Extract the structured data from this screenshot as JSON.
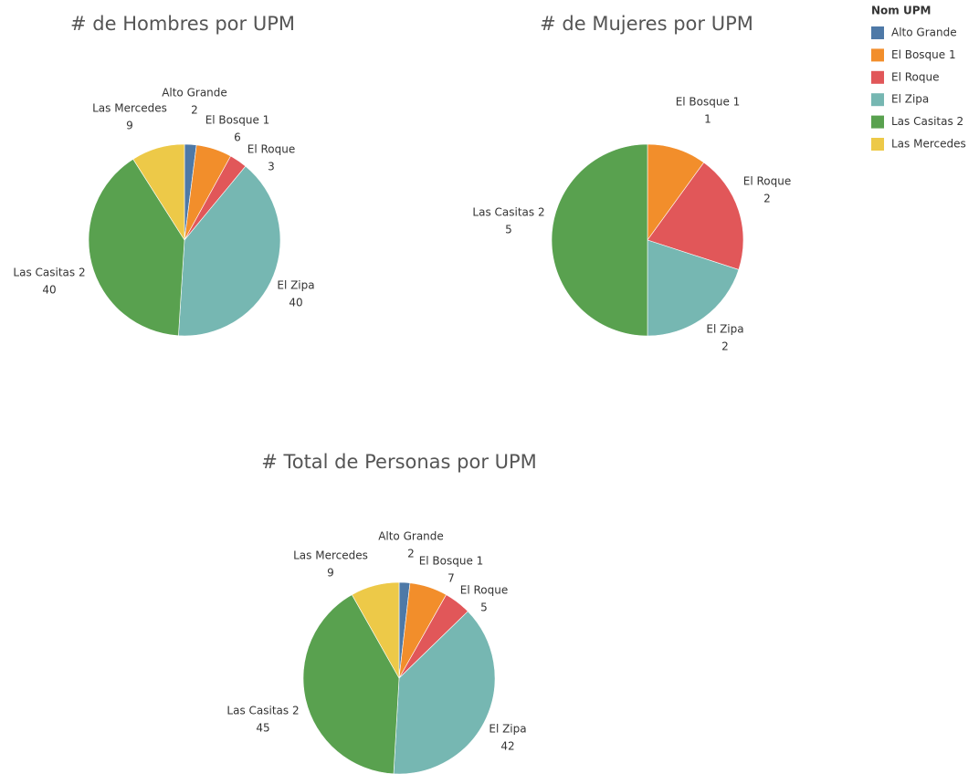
{
  "legend": {
    "title": "Nom UPM",
    "items": [
      "Alto Grande",
      "El Bosque 1",
      "El Roque",
      "El Zipa",
      "Las Casitas 2",
      "Las Mercedes"
    ],
    "colors": [
      "#4e79a7",
      "#f28e2b",
      "#e15759",
      "#76b7b2",
      "#59a14f",
      "#edc948"
    ]
  },
  "chart_data": [
    {
      "type": "pie",
      "title": "# de Hombres por UPM",
      "categories": [
        "Alto Grande",
        "El Bosque 1",
        "El Roque",
        "El Zipa",
        "Las Casitas 2",
        "Las Mercedes"
      ],
      "values": [
        2,
        6,
        3,
        40,
        40,
        9
      ]
    },
    {
      "type": "pie",
      "title": "# de Mujeres por UPM",
      "categories": [
        "El Bosque 1",
        "El Roque",
        "El Zipa",
        "Las Casitas 2"
      ],
      "values": [
        1,
        2,
        2,
        5
      ]
    },
    {
      "type": "pie",
      "title": "# Total de Personas por UPM",
      "categories": [
        "Alto Grande",
        "El Bosque 1",
        "El Roque",
        "El Zipa",
        "Las Casitas 2",
        "Las Mercedes"
      ],
      "values": [
        2,
        7,
        5,
        42,
        45,
        9
      ]
    }
  ]
}
